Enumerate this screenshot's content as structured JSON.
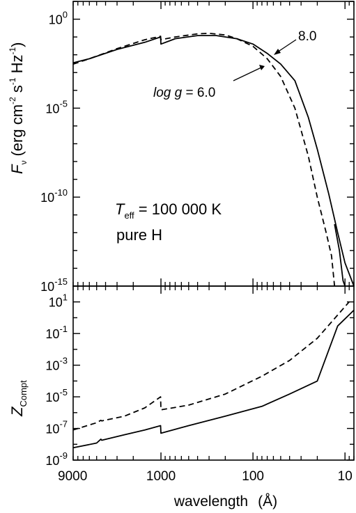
{
  "chart_data": [
    {
      "panel": "top",
      "type": "line",
      "scale": {
        "x": "log-reversed",
        "y": "log"
      },
      "ylabel": {
        "main": "F",
        "sub": "ν",
        "units": "(erg cm",
        "exp1": "-2",
        "s": " s",
        "exp2": "-1",
        "hz": " Hz",
        "exp3": "-1",
        "close": ")"
      },
      "ylim": [
        1e-15,
        10
      ],
      "yticks": [
        {
          "value": 1,
          "base": "10",
          "exp": "0"
        },
        {
          "value": 1e-05,
          "base": "10",
          "exp": "-5"
        },
        {
          "value": 1e-10,
          "base": "10",
          "exp": "-10"
        },
        {
          "value": 1e-15,
          "base": "10",
          "exp": "-15"
        }
      ],
      "annotations": {
        "teff": {
          "t": "T",
          "sub": "eff",
          "rest": " = 100 000 K"
        },
        "composition": "pure H",
        "label_high": "8.0",
        "label_low": {
          "italic": "log g",
          "rest": " = 6.0"
        }
      },
      "series": [
        {
          "style": "solid",
          "points": [
            [
              9000,
              0.0035
            ],
            [
              6000,
              0.006
            ],
            [
              3000,
              0.02
            ],
            [
              1500,
              0.05
            ],
            [
              1010,
              0.1
            ],
            [
              1000,
              0.04
            ],
            [
              700,
              0.08
            ],
            [
              400,
              0.12
            ],
            [
              250,
              0.12
            ],
            [
              150,
              0.08
            ],
            [
              100,
              0.04
            ],
            [
              70,
              0.012
            ],
            [
              50,
              0.003
            ],
            [
              35,
              0.00035
            ],
            [
              25,
              3e-06
            ],
            [
              20,
              5e-08
            ],
            [
              15,
              1.5e-10
            ],
            [
              12,
              1e-12
            ],
            [
              10,
              2e-14
            ],
            [
              8,
              5e-16
            ]
          ]
        },
        {
          "style": "solid",
          "points": [
            [
              13,
              3e-12
            ],
            [
              11.5,
              1e-13
            ],
            [
              10.5,
              2e-15
            ],
            [
              10,
              5e-16
            ]
          ]
        },
        {
          "style": "dashed",
          "points": [
            [
              9000,
              0.003
            ],
            [
              6000,
              0.006
            ],
            [
              3000,
              0.022
            ],
            [
              1500,
              0.07
            ],
            [
              1010,
              0.11
            ],
            [
              1000,
              0.07
            ],
            [
              700,
              0.1
            ],
            [
              400,
              0.15
            ],
            [
              300,
              0.16
            ],
            [
              200,
              0.13
            ],
            [
              150,
              0.08
            ],
            [
              100,
              0.03
            ],
            [
              70,
              0.006
            ],
            [
              50,
              0.0006
            ],
            [
              35,
              1e-05
            ],
            [
              25,
              2e-08
            ],
            [
              20,
              1e-10
            ],
            [
              16,
              1e-12
            ],
            [
              14,
              5e-14
            ],
            [
              13,
              5e-16
            ]
          ]
        }
      ]
    },
    {
      "panel": "bottom",
      "type": "line",
      "scale": {
        "x": "log-reversed",
        "y": "log"
      },
      "xlabel": {
        "text": "wavelength",
        "unit": "(Å)"
      },
      "xticks": [
        {
          "value": 9000,
          "label": "9000"
        },
        {
          "value": 1000,
          "label": "1000"
        },
        {
          "value": 100,
          "label": "100"
        },
        {
          "value": 10,
          "label": "10"
        }
      ],
      "xlim": [
        9000,
        8
      ],
      "ylabel": {
        "main": "Z",
        "sub": "Compt"
      },
      "ylim": [
        1e-09,
        100
      ],
      "yticks": [
        {
          "value": 10,
          "base": "10",
          "exp": "1"
        },
        {
          "value": 0.1,
          "base": "10",
          "exp": "-1"
        },
        {
          "value": 0.001,
          "base": "10",
          "exp": "-3"
        },
        {
          "value": 1e-05,
          "base": "10",
          "exp": "-5"
        },
        {
          "value": 1e-07,
          "base": "10",
          "exp": "-7"
        },
        {
          "value": 1e-09,
          "base": "10",
          "exp": "-9"
        }
      ],
      "series": [
        {
          "style": "solid",
          "points": [
            [
              9000,
              6e-09
            ],
            [
              5000,
              1.2e-08
            ],
            [
              4500,
              2.1e-08
            ],
            [
              4400,
              1.8e-08
            ],
            [
              2500,
              4e-08
            ],
            [
              1500,
              8e-08
            ],
            [
              1010,
              1.5e-07
            ],
            [
              1000,
              5e-08
            ],
            [
              500,
              1.5e-07
            ],
            [
              200,
              6e-07
            ],
            [
              80,
              2.5e-06
            ],
            [
              40,
              1.5e-05
            ],
            [
              20,
              0.0001
            ],
            [
              12,
              0.3
            ],
            [
              8,
              3
            ]
          ]
        },
        {
          "style": "dashed",
          "points": [
            [
              9000,
              8e-08
            ],
            [
              5000,
              2.3e-07
            ],
            [
              4500,
              3.3e-07
            ],
            [
              4400,
              3e-07
            ],
            [
              2500,
              6e-07
            ],
            [
              1500,
              2e-06
            ],
            [
              1010,
              1e-05
            ],
            [
              1000,
              1.5e-06
            ],
            [
              500,
              3e-06
            ],
            [
              200,
              1.5e-05
            ],
            [
              80,
              0.0002
            ],
            [
              40,
              0.002
            ],
            [
              20,
              0.05
            ],
            [
              12,
              1.5
            ],
            [
              9,
              10
            ]
          ]
        }
      ]
    }
  ]
}
